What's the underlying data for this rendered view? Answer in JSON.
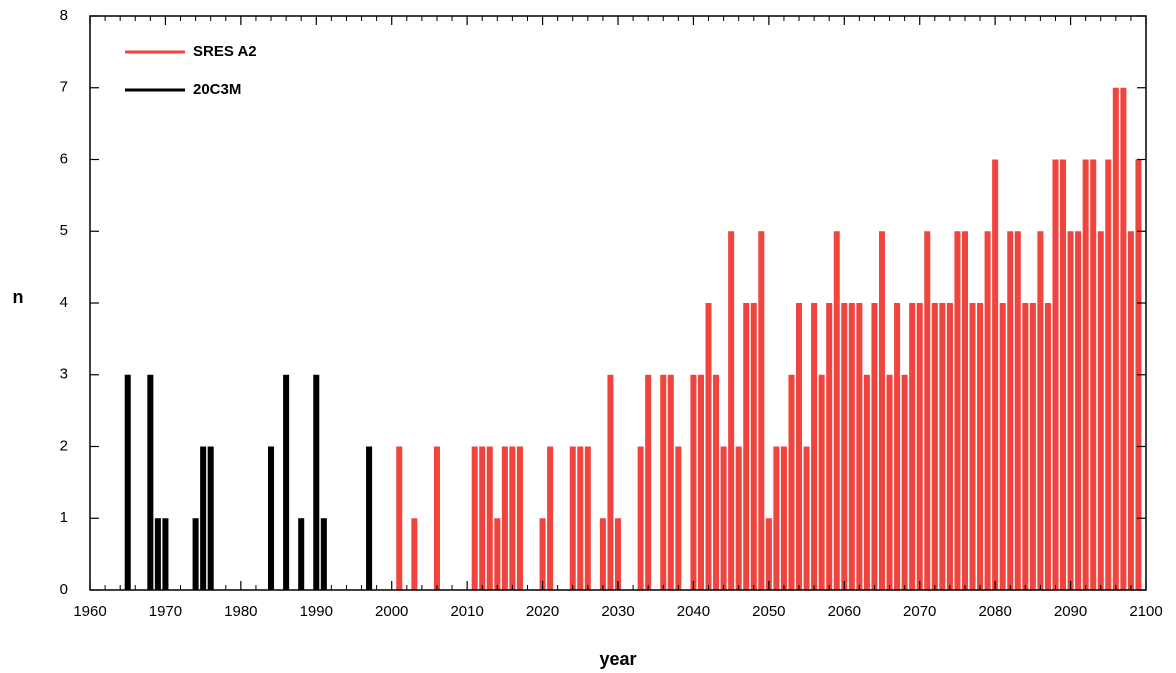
{
  "chart_data": {
    "type": "bar",
    "xlabel": "year",
    "ylabel": "n",
    "xlim": [
      1960,
      2100
    ],
    "xticks": [
      1960,
      1970,
      1980,
      1990,
      2000,
      2010,
      2020,
      2030,
      2040,
      2050,
      2060,
      2070,
      2080,
      2090,
      2100
    ],
    "ylim": [
      0,
      8
    ],
    "yticks": [
      0,
      1,
      2,
      3,
      4,
      5,
      6,
      7,
      8
    ],
    "legend": "upper left",
    "series": [
      {
        "name": "SRES A2",
        "color": "#f0453e",
        "x": [
          2001,
          2003,
          2006,
          2011,
          2012,
          2013,
          2014,
          2015,
          2016,
          2017,
          2020,
          2021,
          2024,
          2025,
          2026,
          2028,
          2029,
          2030,
          2033,
          2034,
          2036,
          2037,
          2038,
          2040,
          2041,
          2042,
          2043,
          2044,
          2045,
          2046,
          2047,
          2048,
          2049,
          2050,
          2051,
          2052,
          2053,
          2054,
          2055,
          2056,
          2057,
          2058,
          2059,
          2060,
          2061,
          2062,
          2063,
          2064,
          2065,
          2066,
          2067,
          2068,
          2069,
          2070,
          2071,
          2072,
          2073,
          2074,
          2075,
          2076,
          2077,
          2078,
          2079,
          2080,
          2081,
          2082,
          2083,
          2084,
          2085,
          2086,
          2087,
          2088,
          2089,
          2090,
          2091,
          2092,
          2093,
          2094,
          2095,
          2096,
          2097,
          2098,
          2099
        ],
        "values": [
          2,
          1,
          2,
          2,
          2,
          2,
          1,
          2,
          2,
          2,
          1,
          2,
          2,
          2,
          2,
          1,
          3,
          1,
          2,
          3,
          3,
          3,
          2,
          3,
          3,
          4,
          3,
          2,
          5,
          2,
          4,
          4,
          5,
          1,
          2,
          2,
          3,
          4,
          2,
          4,
          3,
          4,
          5,
          4,
          4,
          4,
          3,
          4,
          5,
          3,
          4,
          3,
          4,
          4,
          5,
          4,
          4,
          4,
          5,
          5,
          4,
          4,
          5,
          6,
          4,
          5,
          5,
          4,
          4,
          5,
          4,
          6,
          6,
          5,
          5,
          6,
          6,
          5,
          6,
          7,
          7,
          5,
          6
        ]
      },
      {
        "name": "20C3M",
        "color": "#000000",
        "x": [
          1965,
          1968,
          1969,
          1970,
          1974,
          1975,
          1976,
          1984,
          1986,
          1988,
          1990,
          1991,
          1997
        ],
        "values": [
          3,
          3,
          1,
          1,
          1,
          2,
          2,
          2,
          3,
          1,
          3,
          1,
          2
        ]
      }
    ]
  }
}
